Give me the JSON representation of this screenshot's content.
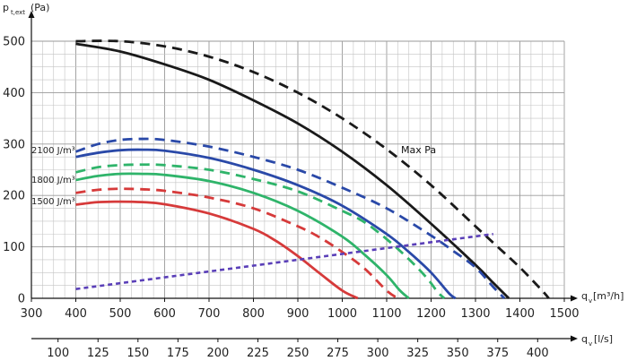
{
  "chart_data": {
    "type": "line",
    "y_axis": {
      "label_main": "p",
      "label_sub": "t,ext",
      "label_unit": "(Pa)",
      "ylim": [
        0,
        500
      ],
      "ticks": [
        0,
        100,
        200,
        300,
        400,
        500
      ]
    },
    "x_axis_primary": {
      "label_main": "q",
      "label_sub": "v",
      "label_unit": "[m³/h]",
      "xlim": [
        300,
        1500
      ],
      "ticks": [
        300,
        400,
        500,
        600,
        700,
        800,
        900,
        1000,
        1100,
        1200,
        1300,
        1400,
        1500
      ]
    },
    "x_axis_secondary": {
      "label_main": "q",
      "label_sub": "v",
      "label_unit": "[l/s]",
      "ticks": [
        100,
        125,
        150,
        175,
        200,
        225,
        250,
        275,
        300,
        325,
        350,
        375,
        400
      ]
    },
    "grid": true,
    "annotations": [
      {
        "id": "max-pa",
        "text": "Max Pa"
      },
      {
        "id": "j2100",
        "text": "2100 J/m³"
      },
      {
        "id": "j1800",
        "text": "1800 J/m³"
      },
      {
        "id": "j1500",
        "text": "1500 J/m³"
      }
    ],
    "series": [
      {
        "id": "max-dashed",
        "color": "#1a1a1a",
        "dash": true,
        "x": [
          400,
          500,
          600,
          700,
          800,
          900,
          1000,
          1100,
          1200,
          1300,
          1350,
          1400,
          1450,
          1465
        ],
        "y": [
          500,
          500,
          490,
          470,
          440,
          400,
          350,
          290,
          220,
          140,
          100,
          60,
          15,
          0
        ]
      },
      {
        "id": "max-solid",
        "color": "#1a1a1a",
        "dash": false,
        "x": [
          400,
          500,
          600,
          700,
          800,
          900,
          1000,
          1100,
          1200,
          1300,
          1340,
          1375
        ],
        "y": [
          495,
          480,
          455,
          425,
          385,
          340,
          285,
          220,
          145,
          65,
          30,
          0
        ]
      },
      {
        "id": "h2100-dashed",
        "color": "#2a49a8",
        "dash": true,
        "x": [
          400,
          450,
          500,
          550,
          600,
          700,
          800,
          900,
          1000,
          1100,
          1200,
          1250,
          1300,
          1340,
          1365
        ],
        "y": [
          285,
          300,
          308,
          310,
          308,
          295,
          275,
          250,
          215,
          175,
          122,
          92,
          60,
          22,
          0
        ]
      },
      {
        "id": "h2100-solid",
        "color": "#2a49a8",
        "dash": false,
        "x": [
          400,
          450,
          500,
          550,
          600,
          700,
          800,
          900,
          1000,
          1100,
          1150,
          1200,
          1240,
          1255
        ],
        "y": [
          275,
          283,
          288,
          289,
          287,
          273,
          250,
          220,
          180,
          125,
          90,
          50,
          10,
          0
        ]
      },
      {
        "id": "h1800-dashed",
        "color": "#2fb46a",
        "dash": true,
        "x": [
          400,
          450,
          500,
          550,
          600,
          700,
          800,
          900,
          1000,
          1050,
          1100,
          1150,
          1190,
          1215,
          1230
        ],
        "y": [
          245,
          255,
          259,
          260,
          259,
          250,
          232,
          208,
          170,
          148,
          115,
          76,
          40,
          12,
          0
        ]
      },
      {
        "id": "h1800-solid",
        "color": "#2fb46a",
        "dash": false,
        "x": [
          400,
          450,
          500,
          550,
          600,
          700,
          800,
          900,
          1000,
          1050,
          1100,
          1130,
          1150
        ],
        "y": [
          230,
          238,
          242,
          242,
          240,
          228,
          205,
          170,
          120,
          85,
          45,
          15,
          0
        ]
      },
      {
        "id": "h1500-dashed",
        "color": "#d63a3a",
        "dash": true,
        "x": [
          400,
          450,
          500,
          550,
          600,
          700,
          800,
          900,
          950,
          1000,
          1050,
          1100,
          1125
        ],
        "y": [
          205,
          211,
          213,
          212,
          209,
          196,
          175,
          140,
          118,
          90,
          58,
          15,
          0
        ]
      },
      {
        "id": "h1500-solid",
        "color": "#d63a3a",
        "dash": false,
        "x": [
          400,
          450,
          500,
          550,
          600,
          700,
          800,
          850,
          900,
          950,
          1000,
          1035
        ],
        "y": [
          182,
          187,
          188,
          187,
          183,
          165,
          135,
          112,
          82,
          48,
          15,
          0
        ]
      },
      {
        "id": "system-line",
        "color": "#5a3fb8",
        "dash": true,
        "x": [
          400,
          1340
        ],
        "y": [
          18,
          125
        ]
      }
    ]
  }
}
